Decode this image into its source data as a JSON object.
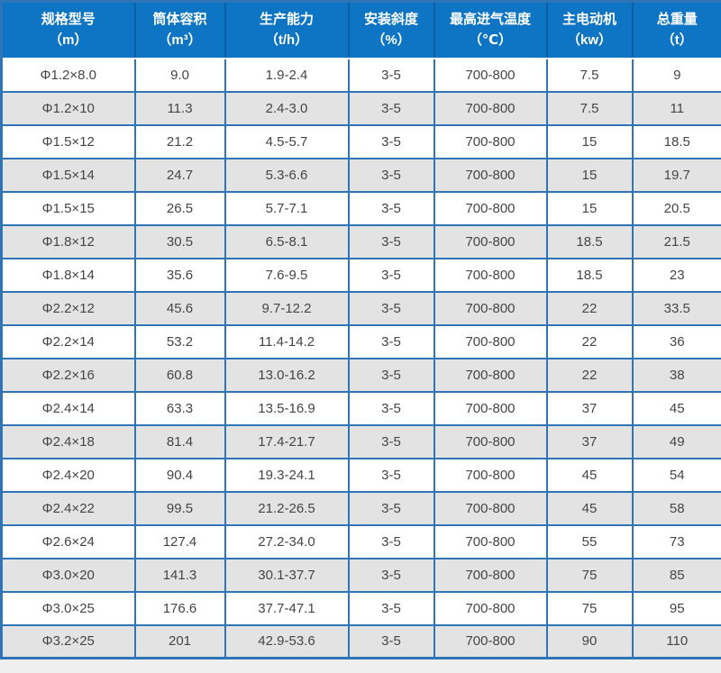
{
  "colors": {
    "header_bg": "#0e74c4",
    "header_divider": "#0a5fa8",
    "header_text": "#ffffff",
    "grid_border": "#2e74b7",
    "row_white": "#ffffff",
    "row_gray": "#e3e3e3",
    "cell_text": "#454545",
    "page_bg": "#efeff0"
  },
  "chart_data": {
    "type": "table",
    "title": "",
    "columns": [
      {
        "label": "规格型号",
        "unit": "（m）"
      },
      {
        "label": "筒体容积",
        "unit": "（m³）"
      },
      {
        "label": "生产能力",
        "unit": "（t/h）"
      },
      {
        "label": "安装斜度",
        "unit": "（%）"
      },
      {
        "label": "最高进气温度",
        "unit": "（℃）"
      },
      {
        "label": "主电动机",
        "unit": "（kw）"
      },
      {
        "label": "总重量",
        "unit": "（t）"
      }
    ],
    "rows": [
      [
        "Φ1.2×8.0",
        "9.0",
        "1.9-2.4",
        "3-5",
        "700-800",
        "7.5",
        "9"
      ],
      [
        "Φ1.2×10",
        "11.3",
        "2.4-3.0",
        "3-5",
        "700-800",
        "7.5",
        "11"
      ],
      [
        "Φ1.5×12",
        "21.2",
        "4.5-5.7",
        "3-5",
        "700-800",
        "15",
        "18.5"
      ],
      [
        "Φ1.5×14",
        "24.7",
        "5.3-6.6",
        "3-5",
        "700-800",
        "15",
        "19.7"
      ],
      [
        "Φ1.5×15",
        "26.5",
        "5.7-7.1",
        "3-5",
        "700-800",
        "15",
        "20.5"
      ],
      [
        "Φ1.8×12",
        "30.5",
        "6.5-8.1",
        "3-5",
        "700-800",
        "18.5",
        "21.5"
      ],
      [
        "Φ1.8×14",
        "35.6",
        "7.6-9.5",
        "3-5",
        "700-800",
        "18.5",
        "23"
      ],
      [
        "Φ2.2×12",
        "45.6",
        "9.7-12.2",
        "3-5",
        "700-800",
        "22",
        "33.5"
      ],
      [
        "Φ2.2×14",
        "53.2",
        "11.4-14.2",
        "3-5",
        "700-800",
        "22",
        "36"
      ],
      [
        "Φ2.2×16",
        "60.8",
        "13.0-16.2",
        "3-5",
        "700-800",
        "22",
        "38"
      ],
      [
        "Φ2.4×14",
        "63.3",
        "13.5-16.9",
        "3-5",
        "700-800",
        "37",
        "45"
      ],
      [
        "Φ2.4×18",
        "81.4",
        "17.4-21.7",
        "3-5",
        "700-800",
        "37",
        "49"
      ],
      [
        "Φ2.4×20",
        "90.4",
        "19.3-24.1",
        "3-5",
        "700-800",
        "45",
        "54"
      ],
      [
        "Φ2.4×22",
        "99.5",
        "21.2-26.5",
        "3-5",
        "700-800",
        "45",
        "58"
      ],
      [
        "Φ2.6×24",
        "127.4",
        "27.2-34.0",
        "3-5",
        "700-800",
        "55",
        "73"
      ],
      [
        "Φ3.0×20",
        "141.3",
        "30.1-37.7",
        "3-5",
        "700-800",
        "75",
        "85"
      ],
      [
        "Φ3.0×25",
        "176.6",
        "37.7-47.1",
        "3-5",
        "700-800",
        "75",
        "95"
      ],
      [
        "Φ3.2×25",
        "201",
        "42.9-53.6",
        "3-5",
        "700-800",
        "90",
        "110"
      ]
    ]
  }
}
